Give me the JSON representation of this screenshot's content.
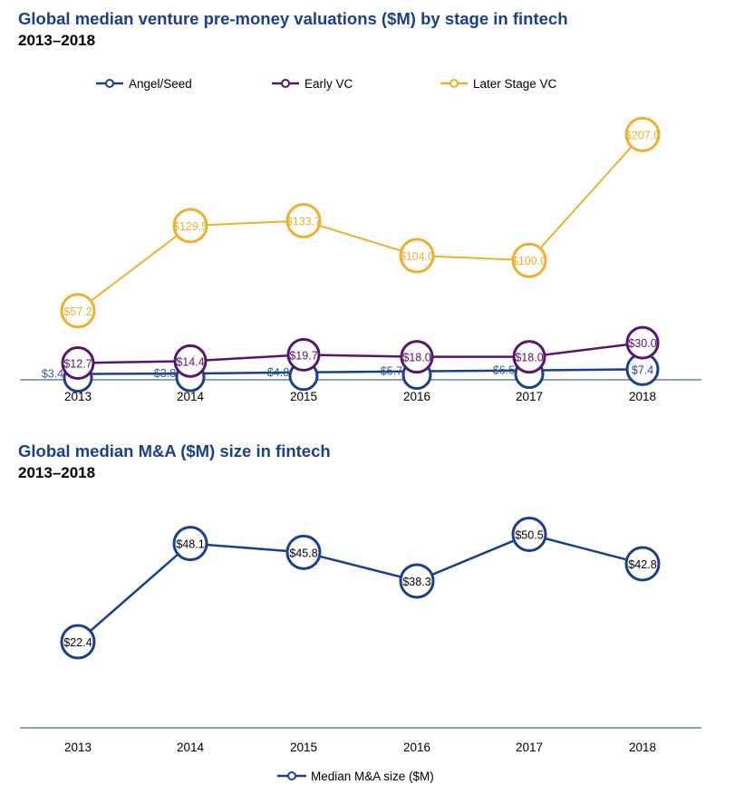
{
  "chart_data": [
    {
      "type": "line",
      "title": "Global median venture pre-money valuations ($M) by stage in fintech",
      "subtitle": "2013–2018",
      "categories": [
        "2013",
        "2014",
        "2015",
        "2016",
        "2017",
        "2018"
      ],
      "legend_position": "top",
      "grid": false,
      "series": [
        {
          "name": "Angel/Seed",
          "color": "#1b3f8f",
          "values": [
            3.4,
            3.8,
            4.8,
            5.7,
            6.5,
            7.4
          ],
          "labels": [
            "$3.4",
            "$3.8",
            "$4.8",
            "$5.7",
            "$6.5",
            "$7.4"
          ]
        },
        {
          "name": "Early VC",
          "color": "#55166b",
          "values": [
            12.7,
            14.4,
            19.7,
            18.0,
            18.0,
            30.0
          ],
          "labels": [
            "$12.7",
            "$14.4",
            "$19.7",
            "$18.0",
            "$18.0",
            "$30.0"
          ]
        },
        {
          "name": "Later Stage VC",
          "color": "#efb02e",
          "values": [
            57.2,
            129.5,
            133.7,
            104.0,
            100.0,
            207.0
          ],
          "labels": [
            "$57.2",
            "$129.5",
            "$133.7",
            "$104.0",
            "$100.0",
            "$207.0"
          ]
        }
      ],
      "ylim": [
        0,
        215
      ]
    },
    {
      "type": "line",
      "title": "Global median M&A ($M) size in fintech",
      "subtitle": "2013–2018",
      "categories": [
        "2013",
        "2014",
        "2015",
        "2016",
        "2017",
        "2018"
      ],
      "legend_position": "bottom",
      "grid": false,
      "series": [
        {
          "name": "Median M&A size ($M)",
          "color": "#1b3f8f",
          "values": [
            22.4,
            48.1,
            45.8,
            38.3,
            50.5,
            42.8
          ],
          "labels": [
            "$22.4",
            "$48.1",
            "$45.8",
            "$38.3",
            "$50.5",
            "$42.8"
          ]
        }
      ],
      "ylim": [
        0,
        55
      ]
    }
  ]
}
